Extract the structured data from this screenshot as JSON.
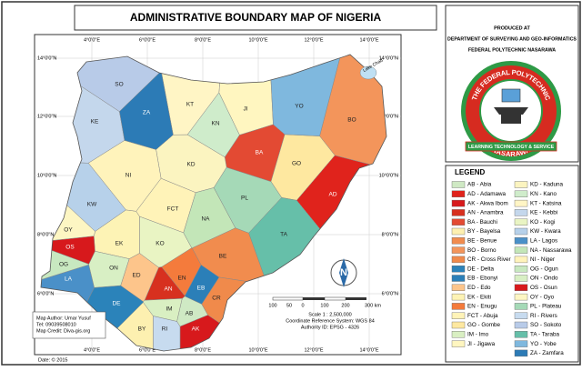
{
  "title": "ADMINISTRATIVE BOUNDARY MAP OF NIGERIA",
  "producer": {
    "heading": "PRODUCED AT",
    "department": "DEPARTMENT OF SURVEYING AND GEO-INFORMATICS",
    "institution": "FEDERAL POLYTECHNIC NASARAWA"
  },
  "logo": {
    "top_text": "THE FEDERAL POLYTECHNIC",
    "bottom_text": "NASARAWA",
    "motto": "LEARNING TECHNOLOGY & SERVICE"
  },
  "legend": {
    "title": "LEGEND"
  },
  "states": [
    {
      "code": "AB",
      "label": "AB - Abia",
      "color": "#cfe9c4"
    },
    {
      "code": "AD",
      "label": "AD - Adamawa",
      "color": "#e0231c"
    },
    {
      "code": "AK",
      "label": "AK - Akwa Ibom",
      "color": "#d7191c"
    },
    {
      "code": "AN",
      "label": "AN - Anambra",
      "color": "#d7301f"
    },
    {
      "code": "BA",
      "label": "BA - Bauchi",
      "color": "#e34a33"
    },
    {
      "code": "BY",
      "label": "BY - Bayelsa",
      "color": "#fdf0b0"
    },
    {
      "code": "BE",
      "label": "BE - Benue",
      "color": "#f18c4e"
    },
    {
      "code": "BO",
      "label": "BO - Borno",
      "color": "#f3955b"
    },
    {
      "code": "CR",
      "label": "CR - Cross River",
      "color": "#f08a4b"
    },
    {
      "code": "DE",
      "label": "DE - Delta",
      "color": "#2b83ba"
    },
    {
      "code": "EB",
      "label": "EB - Ebonyi",
      "color": "#2b7fb8"
    },
    {
      "code": "ED",
      "label": "ED - Edo",
      "color": "#fdc58b"
    },
    {
      "code": "EK",
      "label": "EK - Ekiti",
      "color": "#fdf3b5"
    },
    {
      "code": "EN",
      "label": "EN - Enugu",
      "color": "#f47b3c"
    },
    {
      "code": "FCT",
      "label": "FCT - Abuja",
      "color": "#fff3b8"
    },
    {
      "code": "GO",
      "label": "GO - Gombe",
      "color": "#fee8a0"
    },
    {
      "code": "IM",
      "label": "IM - Imo",
      "color": "#d9efc2"
    },
    {
      "code": "JI",
      "label": "JI - Jigawa",
      "color": "#fff6c0"
    },
    {
      "code": "KD",
      "label": "KD - Kaduna",
      "color": "#fbf4c0"
    },
    {
      "code": "KN",
      "label": "KN - Kano",
      "color": "#cfeccb"
    },
    {
      "code": "KT",
      "label": "KT - Katsina",
      "color": "#fff5c5"
    },
    {
      "code": "KE",
      "label": "KE - Kebbi",
      "color": "#c4d7ec"
    },
    {
      "code": "KO",
      "label": "KO - Kogi",
      "color": "#e9f4c3"
    },
    {
      "code": "KW",
      "label": "KW - Kwara",
      "color": "#b7d1ea"
    },
    {
      "code": "LA",
      "label": "LA - Lagos",
      "color": "#4a90c8"
    },
    {
      "code": "NA",
      "label": "NA - Nassarawa",
      "color": "#c3e6b8"
    },
    {
      "code": "NI",
      "label": "NI - Niger",
      "color": "#fff3bb"
    },
    {
      "code": "OG",
      "label": "OG - Ogun",
      "color": "#c8e8c0"
    },
    {
      "code": "ON",
      "label": "ON - Ondo",
      "color": "#d8efc4"
    },
    {
      "code": "OS",
      "label": "OS - Osun",
      "color": "#d7191c"
    },
    {
      "code": "OY",
      "label": "OY - Oyo",
      "color": "#fdf6c3"
    },
    {
      "code": "PL",
      "label": "PL - Plateau",
      "color": "#a5d9b7"
    },
    {
      "code": "RI",
      "label": "RI - Rivers",
      "color": "#c7dbef"
    },
    {
      "code": "SO",
      "label": "SO - Sokoto",
      "color": "#b8cbe8"
    },
    {
      "code": "TA",
      "label": "TA - Taraba",
      "color": "#66bfa9"
    },
    {
      "code": "YO",
      "label": "YO - Yobe",
      "color": "#7fb8de"
    },
    {
      "code": "ZA",
      "label": "ZA - Zamfara",
      "color": "#2c7bb6"
    }
  ],
  "graticule": {
    "longitudes": [
      "4°0'0\"E",
      "6°0'0\"E",
      "8°0'0\"E",
      "10°0'0\"E",
      "12°0'0\"E",
      "14°0'0\"E"
    ],
    "latitudes": [
      "14°0'0\"N",
      "12°0'0\"N",
      "10°0'0\"N",
      "8°0'0\"N",
      "6°0'0\"N"
    ]
  },
  "scale_bar": {
    "labels": [
      "100",
      "50",
      "0",
      "100",
      "200",
      "300 km"
    ],
    "scale": "Scale 1 : 2,500,000",
    "crs": "Coordinate Reference System: WGS 84",
    "authority": "Authority ID: EPSG - 4326"
  },
  "north_arrow": "N",
  "lake": "Lake Chad",
  "author": {
    "name": "Map Author: Umar Yusuf",
    "tel": "Tel: 09039508010",
    "credit": "Map Credit: Diva-gis.org"
  },
  "date": "Date: © 2015"
}
